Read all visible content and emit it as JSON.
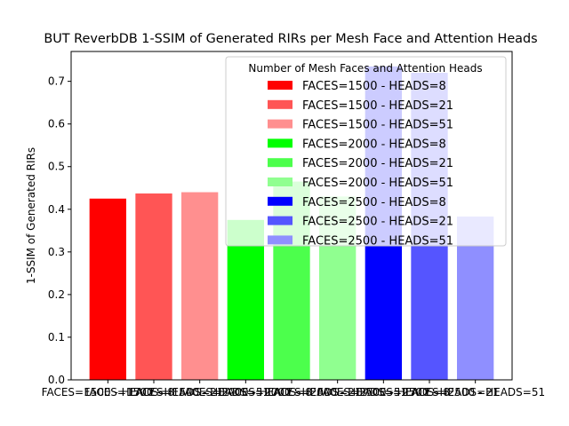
{
  "chart_data": {
    "type": "bar",
    "title": "BUT ReverbDB 1-SSIM of Generated RIRs per Mesh Face and Attention Heads",
    "xlabel": "",
    "ylabel": "1-SSIM of Generated RIRs",
    "ylim": [
      0,
      0.77
    ],
    "yticks": [
      "0.0",
      "0.1",
      "0.2",
      "0.3",
      "0.4",
      "0.5",
      "0.6",
      "0.7"
    ],
    "grid": false,
    "legend_title": "Number of Mesh Faces and Attention Heads",
    "legend_position": "top-right",
    "categories": [
      "FACES=1500 - HEADS=8",
      "FACES=1500 - HEADS=21",
      "FACES=1500 - HEADS=51",
      "FACES=2000 - HEADS=8",
      "FACES=2000 - HEADS=21",
      "FACES=2000 - HEADS=51",
      "FACES=2500 - HEADS=8",
      "FACES=2500 - HEADS=21",
      "FACES=2500 - HEADS=51"
    ],
    "values": [
      0.425,
      0.437,
      0.44,
      0.375,
      0.465,
      0.43,
      0.735,
      0.72,
      0.383
    ],
    "colors": [
      "#ff0000",
      "#ff5555",
      "#ff8f8f",
      "#00ff00",
      "#4cff4c",
      "#90ff90",
      "#0000ff",
      "#5555ff",
      "#8f8fff"
    ]
  }
}
